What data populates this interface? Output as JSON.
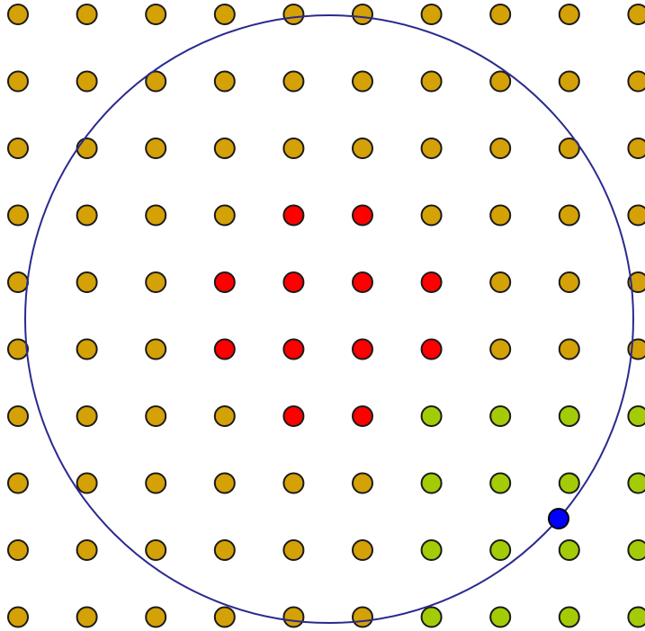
{
  "grid": {
    "columns": 10,
    "rows": 10,
    "cells": [
      "gggggggggg",
      "gggggggggg",
      "gggggggggg",
      "ggggrrgggg",
      "gggrrrrggg",
      "gggrrrrggg",
      "ggggrrllll",
      "ggggggllll",
      "ggggggllll",
      "ggggggllll"
    ]
  },
  "dot_colors": {
    "g": "#d4a106",
    "r": "#ff0000",
    "l": "#a3cc06"
  },
  "circle": {
    "stroke_color": "#2a2a8f"
  },
  "handle": {
    "fill_color": "#0000ff"
  }
}
